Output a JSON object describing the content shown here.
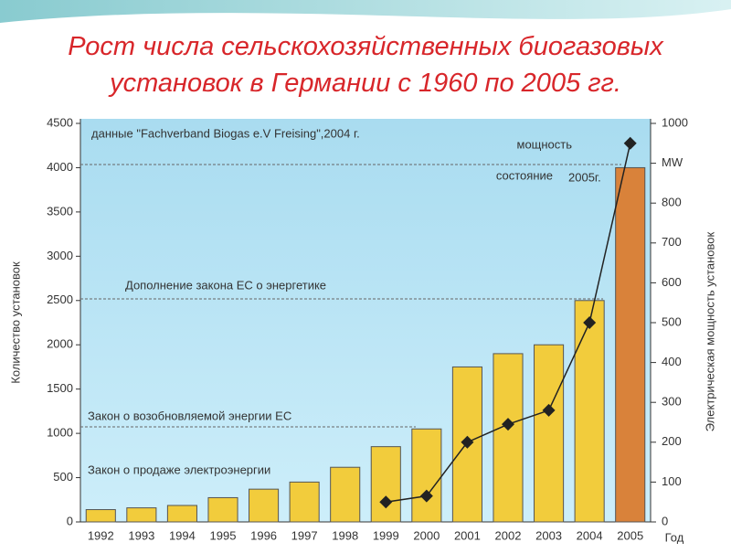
{
  "chart_data": {
    "type": "bar",
    "title": "Рост числа сельскохозяйственных биогазовых установок в Германии с 1960 по 2005 гг.",
    "categories": [
      "1992",
      "1993",
      "1994",
      "1995",
      "1996",
      "1997",
      "1998",
      "1999",
      "2000",
      "2001",
      "2002",
      "2003",
      "2004",
      "2005"
    ],
    "series": [
      {
        "type": "bar",
        "colors": [
          "#f2cc3c",
          "#f2cc3c",
          "#f2cc3c",
          "#f2cc3c",
          "#f2cc3c",
          "#f2cc3c",
          "#f2cc3c",
          "#f2cc3c",
          "#f2cc3c",
          "#f2cc3c",
          "#f2cc3c",
          "#f2cc3c",
          "#f2cc3c",
          "#d9823a"
        ],
        "values": [
          139,
          159,
          186,
          274,
          370,
          450,
          617,
          850,
          1050,
          1750,
          1900,
          2000,
          2500,
          4000
        ]
      },
      {
        "type": "line",
        "axis": "y2",
        "color": "#222222",
        "values": [
          null,
          null,
          null,
          null,
          null,
          null,
          null,
          50,
          65,
          200,
          245,
          280,
          500,
          950
        ]
      }
    ],
    "ylim": [
      0,
      4500
    ],
    "yticks": [
      0,
      500,
      1000,
      1500,
      2000,
      2500,
      3000,
      3500,
      4000,
      4500
    ],
    "y2lim": [
      0,
      1000
    ],
    "y2ticks": [
      0,
      100,
      200,
      300,
      400,
      500,
      600,
      700,
      800,
      {
        "value": 900,
        "label": "MW"
      },
      1000
    ],
    "ylabel": "Количество установок",
    "y2label": "Электрическая мощность установок",
    "xlabel": "Год",
    "annotations": [
      "данные \"Fachverband Biogas e.V Freising\",2004 г.",
      "мощность",
      "состояние",
      "2005г.",
      "Дополнение закона ЕС о энергетике",
      "Закон о возобновляемой энергии ЕС",
      "Закон о продаже электроэнергии"
    ]
  }
}
